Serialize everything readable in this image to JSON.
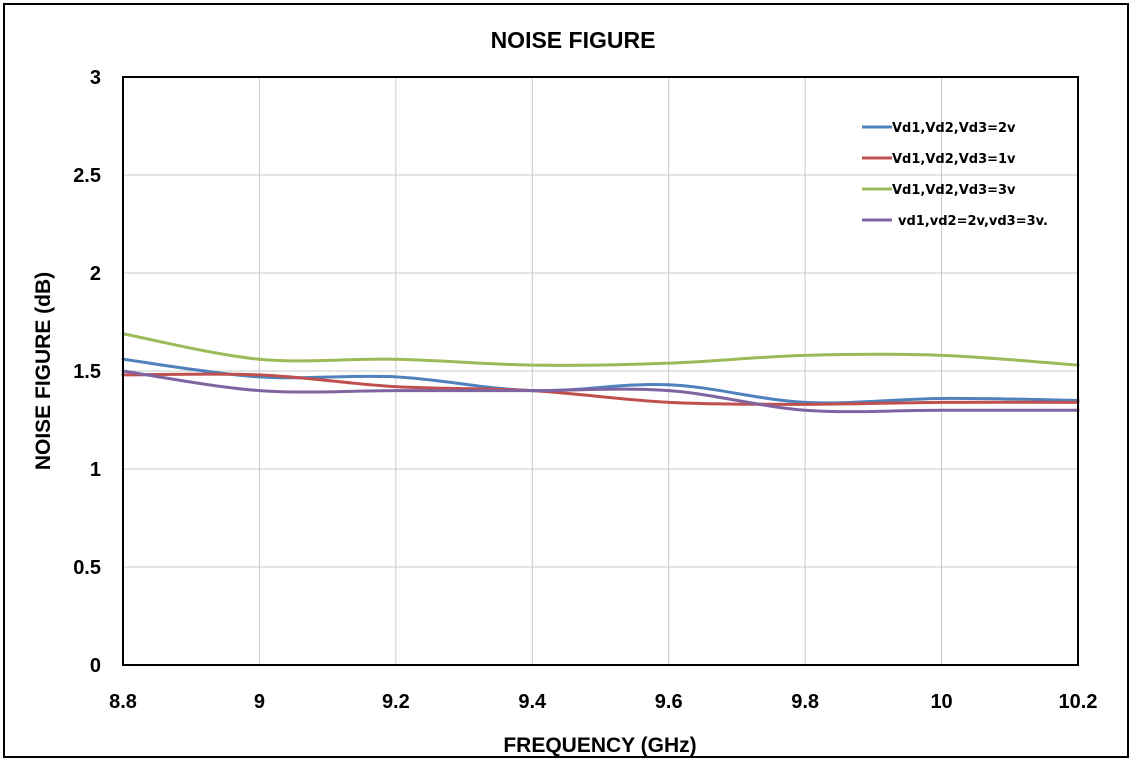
{
  "chart_data": {
    "type": "line",
    "title": "NOISE FIGURE",
    "xlabel": "FREQUENCY (GHz)",
    "ylabel": "NOISE FIGURE (dB)",
    "xlim": [
      8.8,
      10.2
    ],
    "ylim": [
      0,
      3
    ],
    "x_ticks": [
      "8.8",
      "9",
      "9.2",
      "9.4",
      "9.6",
      "9.8",
      "10",
      "10.2"
    ],
    "y_ticks": [
      "0",
      "0.5",
      "1",
      "1.5",
      "2",
      "2.5",
      "3"
    ],
    "grid": true,
    "legend_position": "top-right",
    "x": [
      8.8,
      9.0,
      9.2,
      9.4,
      9.6,
      9.8,
      10.0,
      10.2
    ],
    "series": [
      {
        "name": "Vd1,Vd2,Vd3=2v",
        "color": "#4f81bd",
        "values": [
          1.56,
          1.47,
          1.47,
          1.4,
          1.43,
          1.34,
          1.36,
          1.35
        ]
      },
      {
        "name": "Vd1,Vd2,Vd3=1v",
        "color": "#c0504d",
        "values": [
          1.48,
          1.48,
          1.42,
          1.4,
          1.34,
          1.33,
          1.34,
          1.34
        ]
      },
      {
        "name": "Vd1,Vd2,Vd3=3v",
        "color": "#9bbb59",
        "values": [
          1.69,
          1.56,
          1.56,
          1.53,
          1.54,
          1.58,
          1.58,
          1.53
        ]
      },
      {
        "name": "vd1,vd2=2v,vd3=3v.",
        "color": "#8064a2",
        "values": [
          1.5,
          1.4,
          1.4,
          1.4,
          1.4,
          1.3,
          1.3,
          1.3
        ]
      }
    ]
  }
}
